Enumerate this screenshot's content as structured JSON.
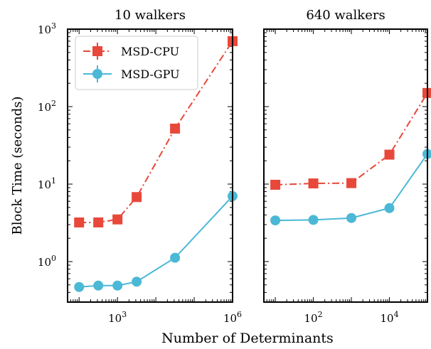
{
  "chart_data": {
    "type": "line",
    "xlabel": "Number of Determinants",
    "ylabel": "Block Time (seconds)",
    "legend": {
      "placement": "top-left of left panel",
      "entries": [
        "MSD-CPU",
        "MSD-GPU"
      ]
    },
    "y_scale": "log",
    "ylim": [
      0.3,
      1000
    ],
    "y_ticks": [
      {
        "value": 1,
        "base": "10",
        "exp": "0"
      },
      {
        "value": 10,
        "base": "10",
        "exp": "1"
      },
      {
        "value": 100,
        "base": "10",
        "exp": "2"
      },
      {
        "value": 1000,
        "base": "10",
        "exp": "3"
      }
    ],
    "colors": {
      "cpu": "#e8483a",
      "gpu": "#4bb8d6"
    },
    "panels": [
      {
        "title": "10 walkers",
        "x_scale": "log",
        "xlim": [
          50,
          1000000
        ],
        "x_ticks": [
          {
            "value": 1000,
            "base": "10",
            "exp": "3"
          },
          {
            "value": 1000000,
            "base": "10",
            "exp": "6"
          }
        ],
        "series": [
          {
            "name": "MSD-CPU",
            "color": "#e8483a",
            "marker": "square",
            "linestyle": "dash-dot",
            "x": [
              100,
              316,
              1000,
              3162,
              31623,
              1000000
            ],
            "y": [
              3.2,
              3.2,
              3.5,
              6.8,
              52,
              700
            ]
          },
          {
            "name": "MSD-GPU",
            "color": "#4bb8d6",
            "marker": "circle",
            "linestyle": "solid",
            "x": [
              100,
              316,
              1000,
              3162,
              31623,
              1000000
            ],
            "y": [
              0.47,
              0.49,
              0.49,
              0.55,
              1.12,
              7.0
            ]
          }
        ]
      },
      {
        "title": "640 walkers",
        "x_scale": "log",
        "xlim": [
          5,
          100000
        ],
        "x_ticks": [
          {
            "value": 100,
            "base": "10",
            "exp": "2"
          },
          {
            "value": 10000,
            "base": "10",
            "exp": "4"
          }
        ],
        "series": [
          {
            "name": "MSD-CPU",
            "color": "#e8483a",
            "marker": "square",
            "linestyle": "dash-dot",
            "x": [
              10,
              100,
              1000,
              10000,
              100000
            ],
            "y": [
              9.8,
              10.2,
              10.3,
              24,
              150
            ]
          },
          {
            "name": "MSD-GPU",
            "color": "#4bb8d6",
            "marker": "circle",
            "linestyle": "solid",
            "x": [
              10,
              100,
              1000,
              10000,
              100000
            ],
            "y": [
              3.4,
              3.45,
              3.65,
              4.9,
              24.5
            ]
          }
        ]
      }
    ]
  }
}
